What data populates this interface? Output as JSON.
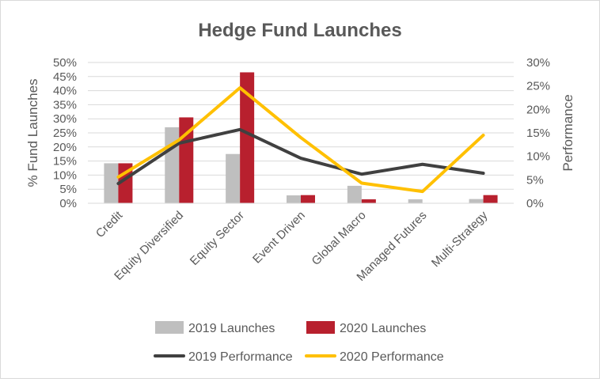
{
  "chart_data": {
    "type": "bar",
    "title": "Hedge Fund Launches",
    "categories": [
      "Credit",
      "Equity Diversified",
      "Equity Sector",
      "Event Driven",
      "Global Macro",
      "Managed Futures",
      "Multi-Strategy"
    ],
    "ylabel": "% Fund Launches",
    "y2label": "Performance",
    "ylim": [
      0,
      50
    ],
    "y2lim": [
      0,
      30
    ],
    "yticks": [
      "0%",
      "5%",
      "10%",
      "15%",
      "20%",
      "25%",
      "30%",
      "35%",
      "40%",
      "45%",
      "50%"
    ],
    "y2ticks": [
      "0%",
      "5%",
      "10%",
      "15%",
      "20%",
      "25%",
      "30%"
    ],
    "grid": true,
    "legend_position": "bottom",
    "series": [
      {
        "name": "2019 Launches",
        "kind": "bar",
        "axis": "left",
        "color": "#bfbfbf",
        "values": [
          14.2,
          27.0,
          17.5,
          2.8,
          6.2,
          1.4,
          1.5
        ]
      },
      {
        "name": "2020 Launches",
        "kind": "bar",
        "axis": "left",
        "color": "#b8202e",
        "values": [
          14.2,
          30.5,
          46.5,
          2.9,
          1.4,
          0.0,
          2.9
        ]
      },
      {
        "name": "2019 Performance",
        "kind": "line",
        "axis": "right",
        "color": "#404040",
        "values": [
          4.2,
          12.8,
          15.7,
          9.6,
          6.2,
          8.3,
          6.4
        ]
      },
      {
        "name": "2020 Performance",
        "kind": "line",
        "axis": "right",
        "color": "#ffc000",
        "values": [
          5.6,
          13.5,
          24.6,
          14.0,
          4.3,
          2.5,
          14.5
        ]
      }
    ]
  }
}
